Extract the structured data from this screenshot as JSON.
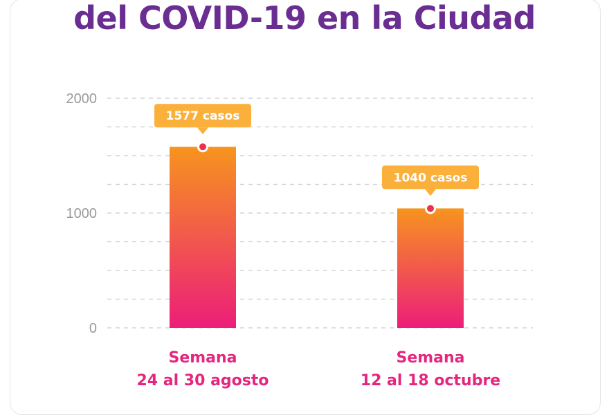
{
  "title": "del COVID-19 en la Ciudad",
  "colors": {
    "title": "#6a2d91",
    "bar_top": "#f7941e",
    "bar_bottom": "#ec1e79",
    "callout": "#fbb03b",
    "marker": "#e8334a",
    "category_label": "#e5267e",
    "grid": "#cccccc",
    "tick_label": "#9a9a9a"
  },
  "chart_data": {
    "type": "bar",
    "title": "del COVID-19 en la Ciudad",
    "xlabel": "",
    "ylabel": "",
    "ylim": [
      0,
      2000
    ],
    "yticks": [
      0,
      1000,
      2000
    ],
    "grid": true,
    "categories": [
      [
        "Semana",
        "24 al 30 agosto"
      ],
      [
        "Semana",
        "12 al 18 octubre"
      ]
    ],
    "values": [
      1577,
      1040
    ],
    "data_labels": [
      "1577 casos",
      "1040 casos"
    ]
  }
}
